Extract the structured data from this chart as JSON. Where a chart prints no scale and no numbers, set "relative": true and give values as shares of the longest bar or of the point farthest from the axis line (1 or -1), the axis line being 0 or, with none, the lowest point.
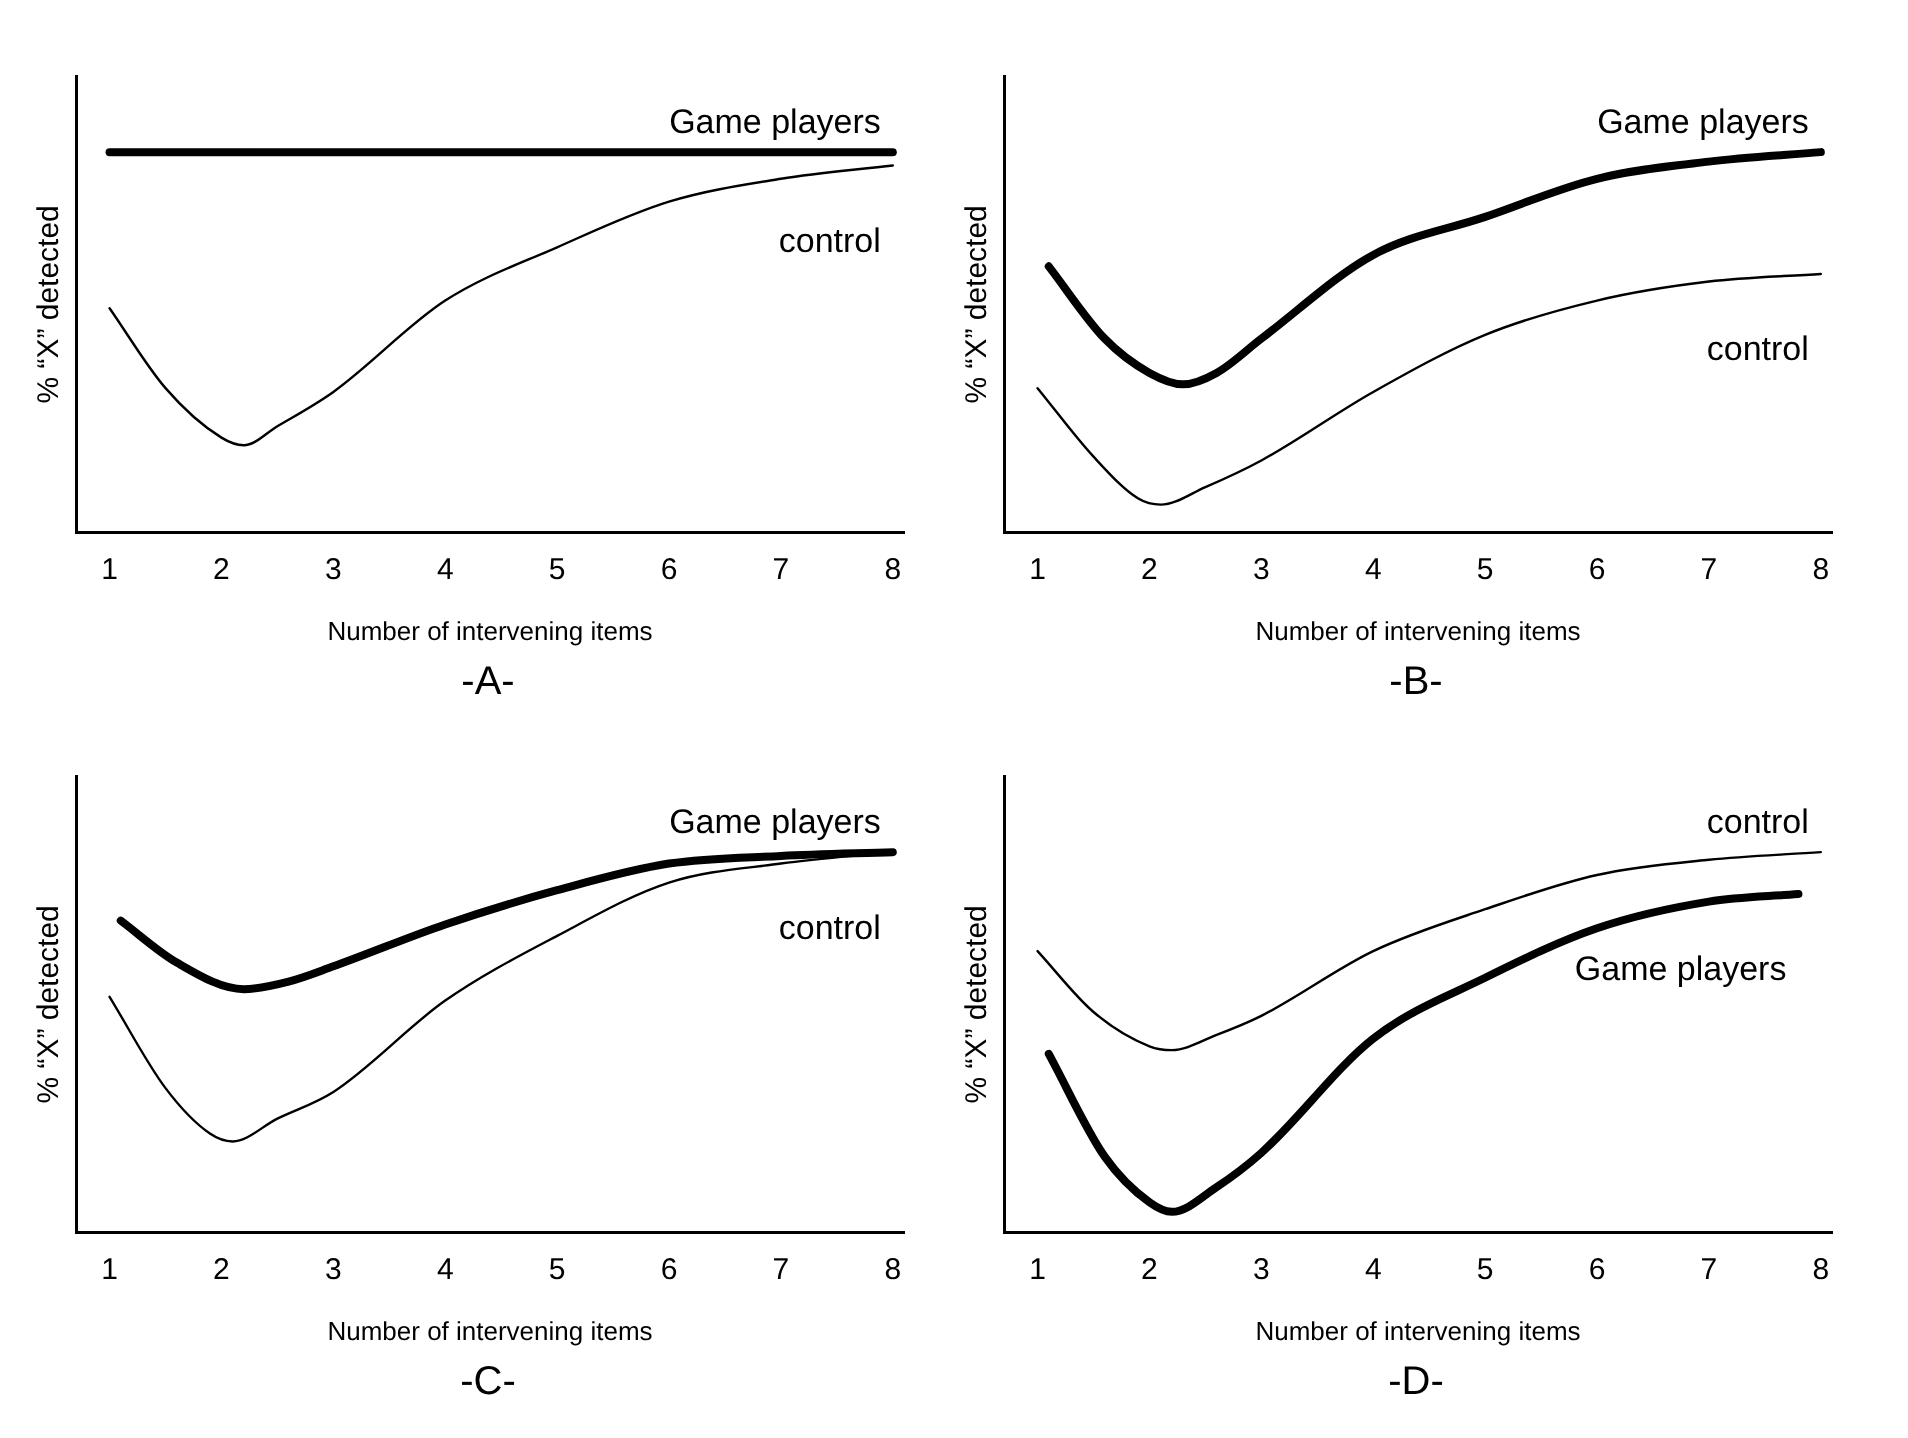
{
  "chart_data": [
    {
      "type": "line",
      "relative": true,
      "xlabel": "Number of intervening items",
      "ylabel": "% “X” detected",
      "xlim": [
        0.7,
        8.1
      ],
      "xticks": [
        1,
        2,
        3,
        4,
        5,
        6,
        7,
        8
      ],
      "annotations": [
        "-A-"
      ],
      "series": [
        {
          "name": "Game players",
          "color": "#000000",
          "x": [
            1,
            8
          ],
          "values": [
            1,
            1
          ]
        },
        {
          "name": "control",
          "color": "#000000",
          "x": [
            1,
            1.5,
            2,
            2.2,
            2.5,
            3,
            4,
            5,
            6,
            7,
            8
          ],
          "values": [
            0.59,
            0.38,
            0.25,
            0.23,
            0.28,
            0.37,
            0.61,
            0.75,
            0.87,
            0.93,
            0.965
          ]
        }
      ]
    },
    {
      "type": "line",
      "relative": true,
      "xlabel": "Number of intervening items",
      "ylabel": "% “X” detected",
      "xlim": [
        0.7,
        8.1
      ],
      "xticks": [
        1,
        2,
        3,
        4,
        5,
        6,
        7,
        8
      ],
      "annotations": [
        "-B-"
      ],
      "series": [
        {
          "name": "Game players",
          "color": "#000000",
          "x": [
            1.1,
            1.6,
            2,
            2.3,
            2.6,
            3,
            4,
            5,
            6,
            7,
            8
          ],
          "values": [
            0.7,
            0.51,
            0.42,
            0.39,
            0.42,
            0.51,
            0.73,
            0.83,
            0.93,
            0.975,
            1
          ]
        },
        {
          "name": "control",
          "color": "#000000",
          "x": [
            1,
            1.5,
            1.9,
            2.1,
            2.5,
            3,
            4,
            5,
            6,
            7,
            8
          ],
          "values": [
            0.38,
            0.2,
            0.09,
            0.074,
            0.12,
            0.19,
            0.37,
            0.52,
            0.61,
            0.66,
            0.68
          ]
        }
      ]
    },
    {
      "type": "line",
      "relative": true,
      "xlabel": "Number of intervening items",
      "ylabel": "% “X” detected",
      "xlim": [
        0.7,
        8.1
      ],
      "xticks": [
        1,
        2,
        3,
        4,
        5,
        6,
        7,
        8
      ],
      "annotations": [
        "-C-"
      ],
      "series": [
        {
          "name": "Game players",
          "color": "#000000",
          "x": [
            1.1,
            1.6,
            2.2,
            2.6,
            3,
            4,
            5,
            6,
            7,
            8
          ],
          "values": [
            0.82,
            0.71,
            0.64,
            0.66,
            0.7,
            0.81,
            0.9,
            0.97,
            0.99,
            1
          ]
        },
        {
          "name": "control",
          "color": "#000000",
          "x": [
            1,
            1.5,
            1.9,
            2.1,
            2.5,
            3,
            4,
            5,
            6,
            7,
            8
          ],
          "values": [
            0.62,
            0.38,
            0.26,
            0.24,
            0.3,
            0.37,
            0.61,
            0.78,
            0.92,
            0.97,
            1
          ]
        }
      ]
    },
    {
      "type": "line",
      "relative": true,
      "xlabel": "Number of intervening items",
      "ylabel": "% “X” detected",
      "xlim": [
        0.7,
        8.1
      ],
      "xticks": [
        1,
        2,
        3,
        4,
        5,
        6,
        7,
        8
      ],
      "annotations": [
        "-D-"
      ],
      "series": [
        {
          "name": "Game players",
          "color": "#000000",
          "x": [
            1.1,
            1.6,
            2,
            2.2,
            2.6,
            3,
            4,
            5,
            6,
            7,
            7.8
          ],
          "values": [
            0.47,
            0.2,
            0.08,
            0.055,
            0.12,
            0.21,
            0.51,
            0.67,
            0.8,
            0.87,
            0.89
          ]
        },
        {
          "name": "control",
          "color": "#000000",
          "x": [
            1,
            1.5,
            2,
            2.2,
            2.6,
            3,
            4,
            5,
            6,
            7,
            8
          ],
          "values": [
            0.74,
            0.58,
            0.49,
            0.48,
            0.52,
            0.57,
            0.74,
            0.85,
            0.94,
            0.98,
            1
          ]
        }
      ]
    }
  ]
}
